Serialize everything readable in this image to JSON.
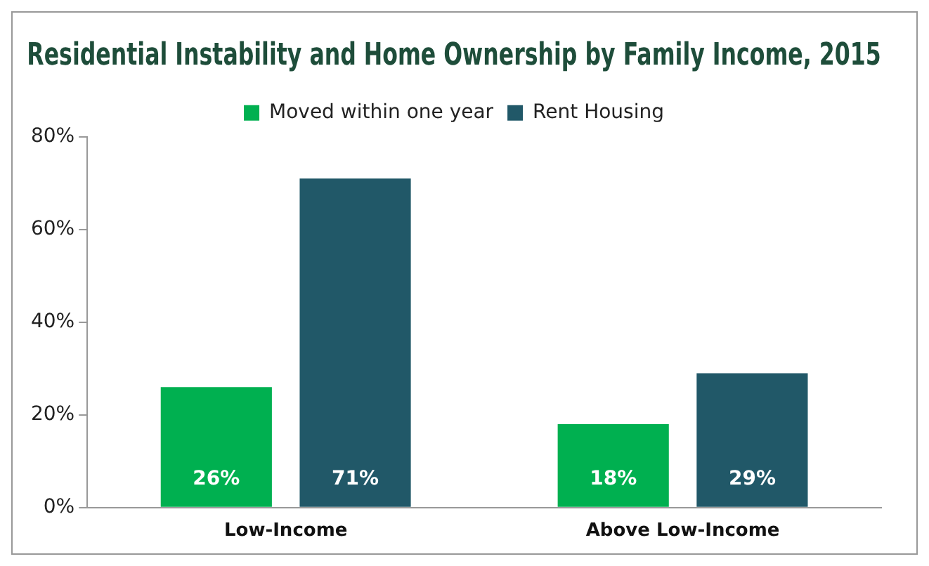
{
  "chart_data": {
    "type": "bar",
    "title": "Residential Instability and Home Ownership by Family Income, 2015",
    "categories": [
      "Low-Income",
      "Above Low-Income"
    ],
    "series": [
      {
        "name": "Moved within one year",
        "color": "#00b050",
        "values": [
          26,
          18
        ],
        "value_labels": [
          "26%",
          "18%"
        ]
      },
      {
        "name": "Rent Housing",
        "color": "#215868",
        "values": [
          71,
          29
        ],
        "value_labels": [
          "71%",
          "29%"
        ]
      }
    ],
    "ylim": [
      0,
      80
    ],
    "yticks": [
      {
        "value": 0,
        "label": "0%"
      },
      {
        "value": 20,
        "label": "20%"
      },
      {
        "value": 40,
        "label": "40%"
      },
      {
        "value": 60,
        "label": "60%"
      },
      {
        "value": 80,
        "label": "80%"
      }
    ],
    "grid": false,
    "legend": "top"
  }
}
